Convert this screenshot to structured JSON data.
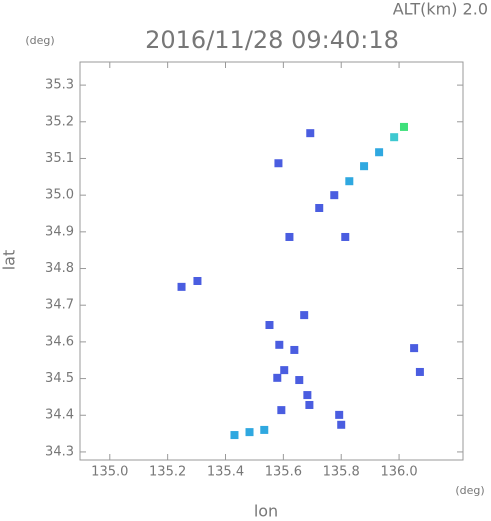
{
  "chart_data": {
    "type": "scatter",
    "altitude_label": "ALT(km) 2.0",
    "title": "2016/11/28 09:40:18",
    "y_unit": "(deg)",
    "x_unit": "(deg)",
    "xlabel": "lon",
    "ylabel": "lat",
    "xlim": [
      134.897,
      136.221
    ],
    "ylim": [
      34.278,
      35.363
    ],
    "xticks": [
      {
        "value": 135.0,
        "label": "135.0"
      },
      135.2,
      135.4,
      135.6,
      135.8,
      {
        "value": 136.0,
        "label": "136.0"
      }
    ],
    "yticks": [
      34.3,
      34.4,
      34.5,
      34.6,
      34.7,
      34.8,
      34.9,
      {
        "value": 35.0,
        "label": "35.0"
      },
      35.1,
      35.2,
      35.3
    ],
    "x": [
      135.724,
      135.776,
      135.828,
      135.879,
      135.931,
      135.983,
      136.017,
      135.693,
      135.583,
      135.621,
      135.814,
      135.248,
      135.303,
      135.552,
      135.672,
      135.586,
      135.638,
      135.603,
      135.655,
      135.579,
      135.683,
      135.69,
      135.593,
      135.793,
      135.8,
      136.052,
      136.072,
      135.431,
      135.483,
      135.534
    ],
    "values": [
      34.965,
      35.0,
      35.038,
      35.079,
      35.117,
      35.158,
      35.186,
      35.169,
      35.087,
      34.886,
      34.886,
      34.75,
      34.766,
      34.646,
      34.673,
      34.592,
      34.578,
      34.523,
      34.496,
      34.502,
      34.455,
      34.428,
      34.414,
      34.401,
      34.374,
      34.583,
      34.518,
      34.346,
      34.354,
      34.36
    ],
    "colors": [
      "#4a5de0",
      "#4a5de0",
      "#2fa8e0",
      "#2fa8e0",
      "#2fa8e0",
      "#3ec8d0",
      "#3ee07a",
      "#4a5de0",
      "#4a5de0",
      "#4a5de0",
      "#4a5de0",
      "#4a5de0",
      "#4a5de0",
      "#4a5de0",
      "#4a5de0",
      "#4a5de0",
      "#4a5de0",
      "#4a5de0",
      "#4a5de0",
      "#4a5de0",
      "#4a5de0",
      "#4a5de0",
      "#4a5de0",
      "#4a5de0",
      "#4a5de0",
      "#4a5de0",
      "#4a5de0",
      "#2fa8e0",
      "#2fa8e0",
      "#2fa8e0"
    ]
  }
}
